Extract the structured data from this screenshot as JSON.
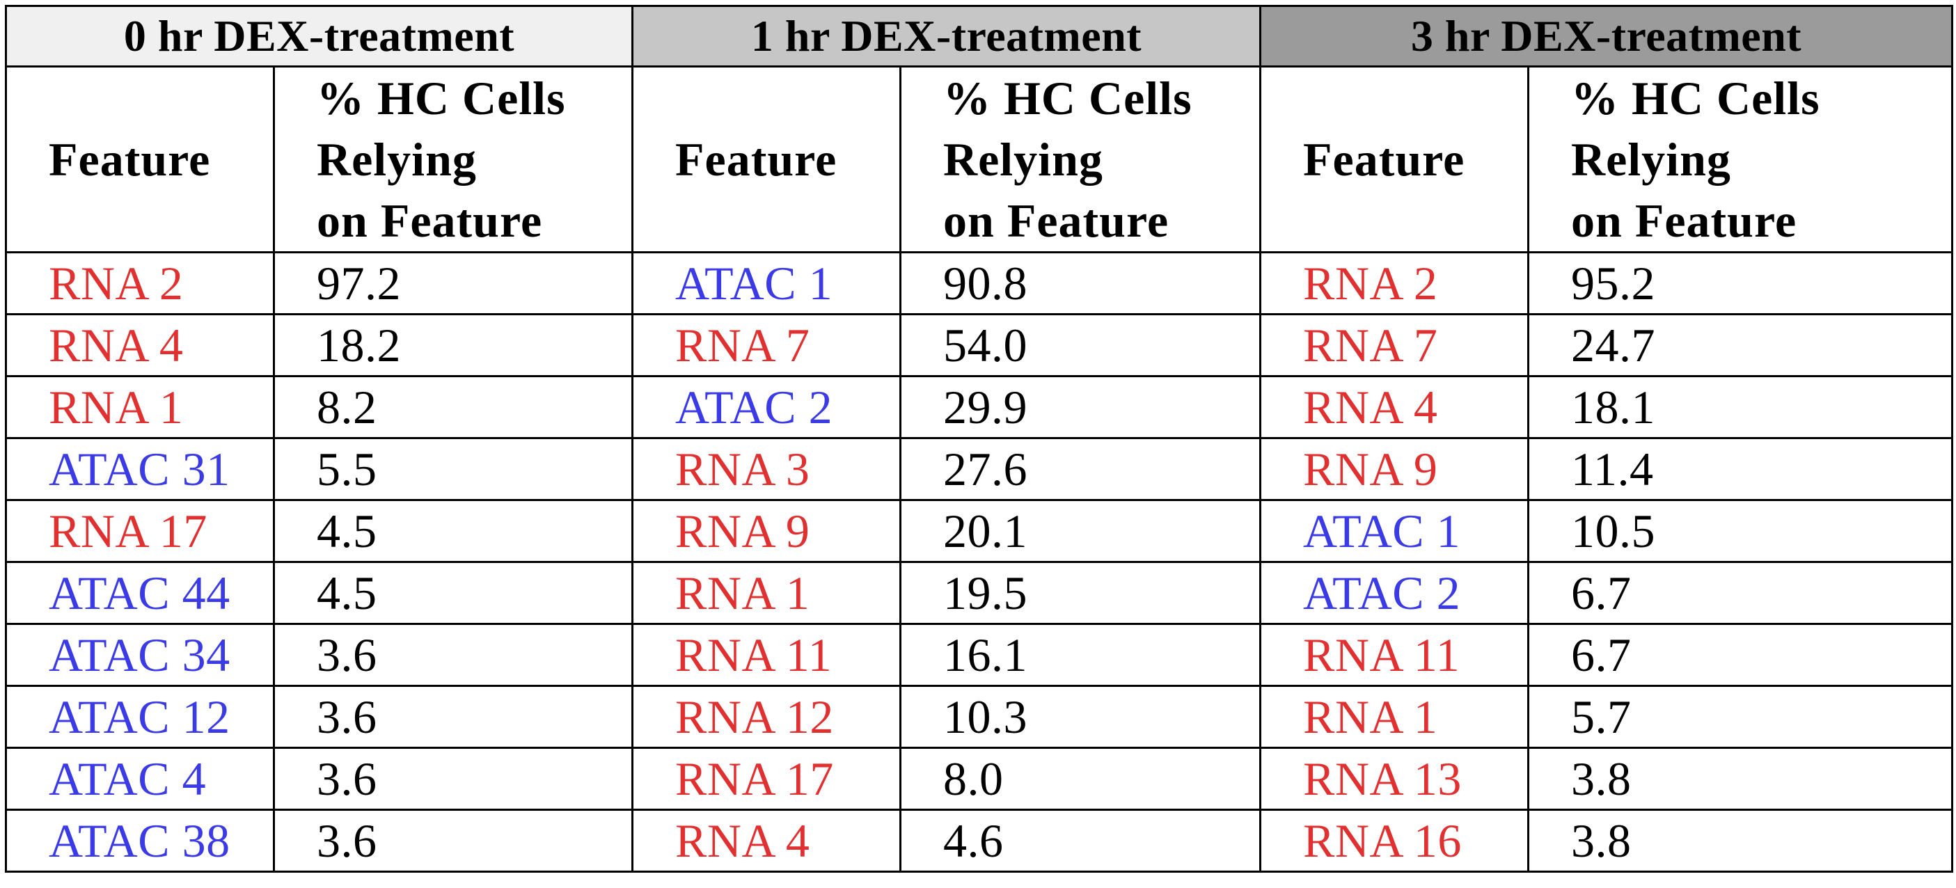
{
  "table": {
    "groups": [
      {
        "title": "0 hr DEX-treatment",
        "bg": "#f0f0f0",
        "rows": [
          {
            "feature": "RNA 2",
            "type": "RNA",
            "value": "97.2"
          },
          {
            "feature": "RNA 4",
            "type": "RNA",
            "value": "18.2"
          },
          {
            "feature": "RNA 1",
            "type": "RNA",
            "value": "8.2"
          },
          {
            "feature": "ATAC 31",
            "type": "ATAC",
            "value": "5.5"
          },
          {
            "feature": "RNA 17",
            "type": "RNA",
            "value": "4.5"
          },
          {
            "feature": "ATAC 44",
            "type": "ATAC",
            "value": "4.5"
          },
          {
            "feature": "ATAC 34",
            "type": "ATAC",
            "value": "3.6"
          },
          {
            "feature": "ATAC 12",
            "type": "ATAC",
            "value": "3.6"
          },
          {
            "feature": "ATAC 4",
            "type": "ATAC",
            "value": "3.6"
          },
          {
            "feature": "ATAC 38",
            "type": "ATAC",
            "value": "3.6"
          }
        ]
      },
      {
        "title": "1 hr DEX-treatment",
        "bg": "#c6c6c6",
        "rows": [
          {
            "feature": "ATAC 1",
            "type": "ATAC",
            "value": "90.8"
          },
          {
            "feature": "RNA 7",
            "type": "RNA",
            "value": "54.0"
          },
          {
            "feature": "ATAC 2",
            "type": "ATAC",
            "value": "29.9"
          },
          {
            "feature": "RNA 3",
            "type": "RNA",
            "value": "27.6"
          },
          {
            "feature": "RNA 9",
            "type": "RNA",
            "value": "20.1"
          },
          {
            "feature": "RNA 1",
            "type": "RNA",
            "value": "19.5"
          },
          {
            "feature": "RNA 11",
            "type": "RNA",
            "value": "16.1"
          },
          {
            "feature": "RNA 12",
            "type": "RNA",
            "value": "10.3"
          },
          {
            "feature": "RNA 17",
            "type": "RNA",
            "value": "8.0"
          },
          {
            "feature": "RNA 4",
            "type": "RNA",
            "value": "4.6"
          }
        ]
      },
      {
        "title": "3 hr DEX-treatment",
        "bg": "#9b9b9b",
        "rows": [
          {
            "feature": "RNA 2",
            "type": "RNA",
            "value": "95.2"
          },
          {
            "feature": "RNA 7",
            "type": "RNA",
            "value": "24.7"
          },
          {
            "feature": "RNA 4",
            "type": "RNA",
            "value": "18.1"
          },
          {
            "feature": "RNA 9",
            "type": "RNA",
            "value": "11.4"
          },
          {
            "feature": "ATAC 1",
            "type": "ATAC",
            "value": "10.5"
          },
          {
            "feature": "ATAC 2",
            "type": "ATAC",
            "value": "6.7"
          },
          {
            "feature": "RNA 11",
            "type": "RNA",
            "value": "6.7"
          },
          {
            "feature": "RNA 1",
            "type": "RNA",
            "value": "5.7"
          },
          {
            "feature": "RNA 13",
            "type": "RNA",
            "value": "3.8"
          },
          {
            "feature": "RNA 16",
            "type": "RNA",
            "value": "3.8"
          }
        ]
      }
    ],
    "column_headers": {
      "feature": "Feature",
      "percent_lines": [
        "% HC Cells",
        "Relying",
        "on Feature"
      ]
    },
    "colors": {
      "RNA": "#e03030",
      "ATAC": "#3a3ae6",
      "value_text": "#000000"
    }
  }
}
